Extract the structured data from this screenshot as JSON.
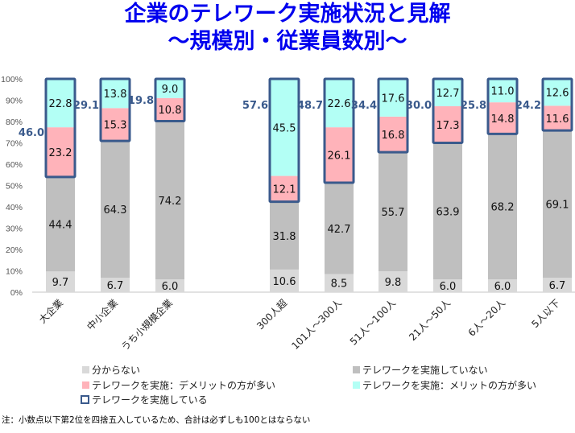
{
  "title": "企業のテレワーク実施状況と見解",
  "subtitle": "～規模別・従業員数別～",
  "note": "注：小数点以下第2位を四捨五入しているため、合計は必ずしも100とはならない",
  "chart_data": {
    "type": "bar",
    "stacked": true,
    "title": "企業のテレワーク実施状況と見解",
    "ylim": [
      0,
      100
    ],
    "yticks": [
      "0%",
      "10%",
      "20%",
      "30%",
      "40%",
      "50%",
      "60%",
      "70%",
      "80%",
      "90%",
      "100%"
    ],
    "categories": [
      "大企業",
      "中小企業",
      "うち小規模企業",
      "300人超",
      "101人～300人",
      "51人～100人",
      "21人～50人",
      "6人～20人",
      "5人以下"
    ],
    "series": [
      {
        "name": "分からない",
        "color": "#d9d9d9",
        "values": [
          9.7,
          6.7,
          6.0,
          10.6,
          8.5,
          9.8,
          6.0,
          6.0,
          6.7
        ]
      },
      {
        "name": "テレワークを実施していない",
        "color": "#bfbfbf",
        "values": [
          44.4,
          64.3,
          74.2,
          31.8,
          42.7,
          55.7,
          63.9,
          68.2,
          69.1
        ]
      },
      {
        "name": "テレワークを実施：デメリットの方が多い",
        "color": "#ffb3ba",
        "values": [
          23.2,
          15.3,
          10.8,
          12.1,
          26.1,
          16.8,
          17.3,
          14.8,
          11.6
        ]
      },
      {
        "name": "テレワークを実施：メリットの方が多い",
        "color": "#b3fff5",
        "values": [
          22.8,
          13.8,
          9.0,
          45.5,
          22.6,
          17.6,
          12.7,
          11.0,
          12.6
        ]
      }
    ],
    "outline_series": {
      "name": "テレワークを実施している",
      "color": "#3a5a8c",
      "values": [
        46.0,
        29.1,
        19.8,
        57.6,
        48.7,
        34.4,
        30.0,
        25.8,
        24.2
      ]
    },
    "legend_position": "bottom",
    "grid": false
  }
}
